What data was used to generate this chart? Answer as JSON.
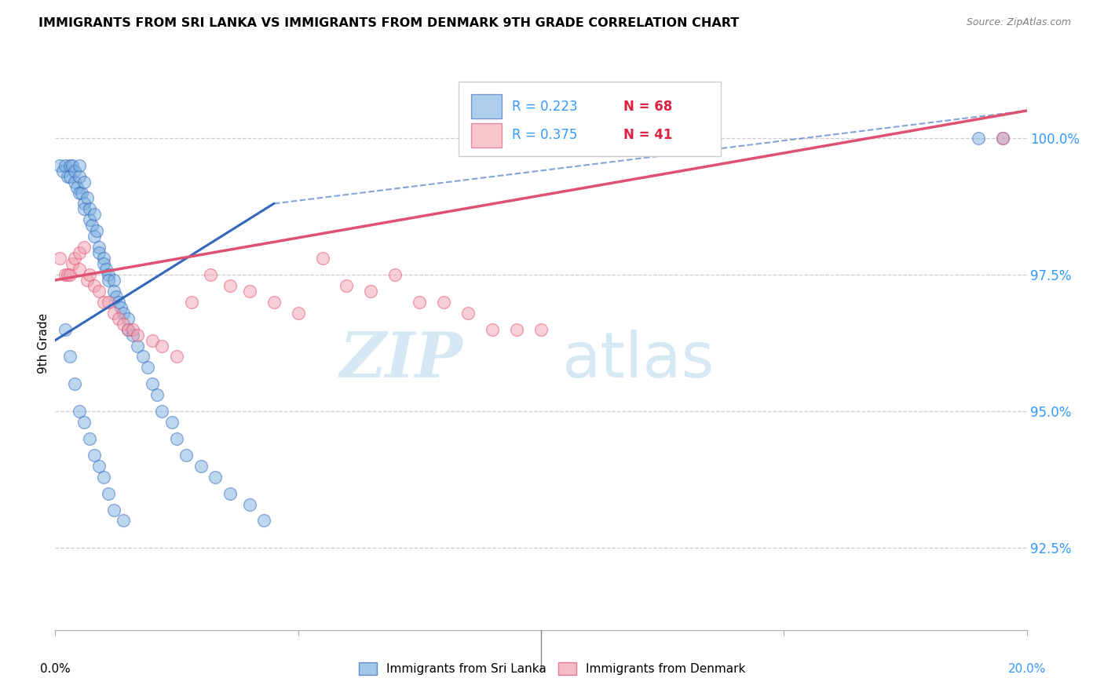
{
  "title": "IMMIGRANTS FROM SRI LANKA VS IMMIGRANTS FROM DENMARK 9TH GRADE CORRELATION CHART",
  "source": "Source: ZipAtlas.com",
  "ylabel": "9th Grade",
  "xlim": [
    0.0,
    20.0
  ],
  "ylim": [
    91.0,
    101.5
  ],
  "yticks": [
    92.5,
    95.0,
    97.5,
    100.0
  ],
  "ytick_labels": [
    "92.5%",
    "95.0%",
    "97.5%",
    "100.0%"
  ],
  "legend_r1": "R = 0.223",
  "legend_n1": "N = 68",
  "legend_r2": "R = 0.375",
  "legend_n2": "N = 41",
  "color_srilanka": "#7ab0e0",
  "color_denmark": "#f0a0b0",
  "color_trendline_srilanka": "#3366bb",
  "color_trendline_denmark": "#e05070",
  "color_yaxis_labels": "#3399ff",
  "sl_x": [
    0.1,
    0.15,
    0.2,
    0.25,
    0.3,
    0.3,
    0.35,
    0.4,
    0.4,
    0.45,
    0.5,
    0.5,
    0.5,
    0.55,
    0.6,
    0.6,
    0.6,
    0.65,
    0.7,
    0.7,
    0.75,
    0.8,
    0.8,
    0.85,
    0.9,
    0.9,
    1.0,
    1.0,
    1.05,
    1.1,
    1.1,
    1.2,
    1.2,
    1.25,
    1.3,
    1.35,
    1.4,
    1.5,
    1.5,
    1.6,
    1.7,
    1.8,
    1.9,
    2.0,
    2.1,
    2.2,
    2.4,
    2.5,
    2.7,
    3.0,
    3.3,
    3.6,
    4.0,
    4.3,
    0.2,
    0.3,
    0.4,
    0.5,
    0.6,
    0.7,
    0.8,
    0.9,
    1.0,
    1.1,
    1.2,
    1.4,
    19.0,
    19.5
  ],
  "sl_y": [
    99.5,
    99.4,
    99.5,
    99.3,
    99.5,
    99.3,
    99.5,
    99.2,
    99.4,
    99.1,
    99.5,
    99.3,
    99.0,
    99.0,
    99.2,
    98.8,
    98.7,
    98.9,
    98.5,
    98.7,
    98.4,
    98.6,
    98.2,
    98.3,
    98.0,
    97.9,
    97.8,
    97.7,
    97.6,
    97.5,
    97.4,
    97.4,
    97.2,
    97.1,
    97.0,
    96.9,
    96.8,
    96.7,
    96.5,
    96.4,
    96.2,
    96.0,
    95.8,
    95.5,
    95.3,
    95.0,
    94.8,
    94.5,
    94.2,
    94.0,
    93.8,
    93.5,
    93.3,
    93.0,
    96.5,
    96.0,
    95.5,
    95.0,
    94.8,
    94.5,
    94.2,
    94.0,
    93.8,
    93.5,
    93.2,
    93.0,
    100.0,
    100.0
  ],
  "dk_x": [
    0.1,
    0.2,
    0.25,
    0.3,
    0.35,
    0.4,
    0.5,
    0.5,
    0.6,
    0.65,
    0.7,
    0.8,
    0.9,
    1.0,
    1.1,
    1.2,
    1.3,
    1.4,
    1.5,
    1.6,
    1.7,
    2.0,
    2.2,
    2.5,
    2.8,
    3.2,
    3.6,
    4.0,
    4.5,
    5.0,
    5.5,
    6.0,
    6.5,
    7.0,
    7.5,
    8.0,
    8.5,
    9.0,
    9.5,
    10.0,
    19.5
  ],
  "dk_y": [
    97.8,
    97.5,
    97.5,
    97.5,
    97.7,
    97.8,
    97.9,
    97.6,
    98.0,
    97.4,
    97.5,
    97.3,
    97.2,
    97.0,
    97.0,
    96.8,
    96.7,
    96.6,
    96.5,
    96.5,
    96.4,
    96.3,
    96.2,
    96.0,
    97.0,
    97.5,
    97.3,
    97.2,
    97.0,
    96.8,
    97.8,
    97.3,
    97.2,
    97.5,
    97.0,
    97.0,
    96.8,
    96.5,
    96.5,
    96.5,
    100.0
  ],
  "trendline_sl_x0": 0.0,
  "trendline_sl_y0": 96.3,
  "trendline_sl_x1": 4.5,
  "trendline_sl_y1": 98.8,
  "trendline_sl_dashed_x1": 20.0,
  "trendline_sl_dashed_y1": 100.5,
  "trendline_dk_x0": 0.0,
  "trendline_dk_y0": 97.4,
  "trendline_dk_x1": 20.0,
  "trendline_dk_y1": 100.5
}
